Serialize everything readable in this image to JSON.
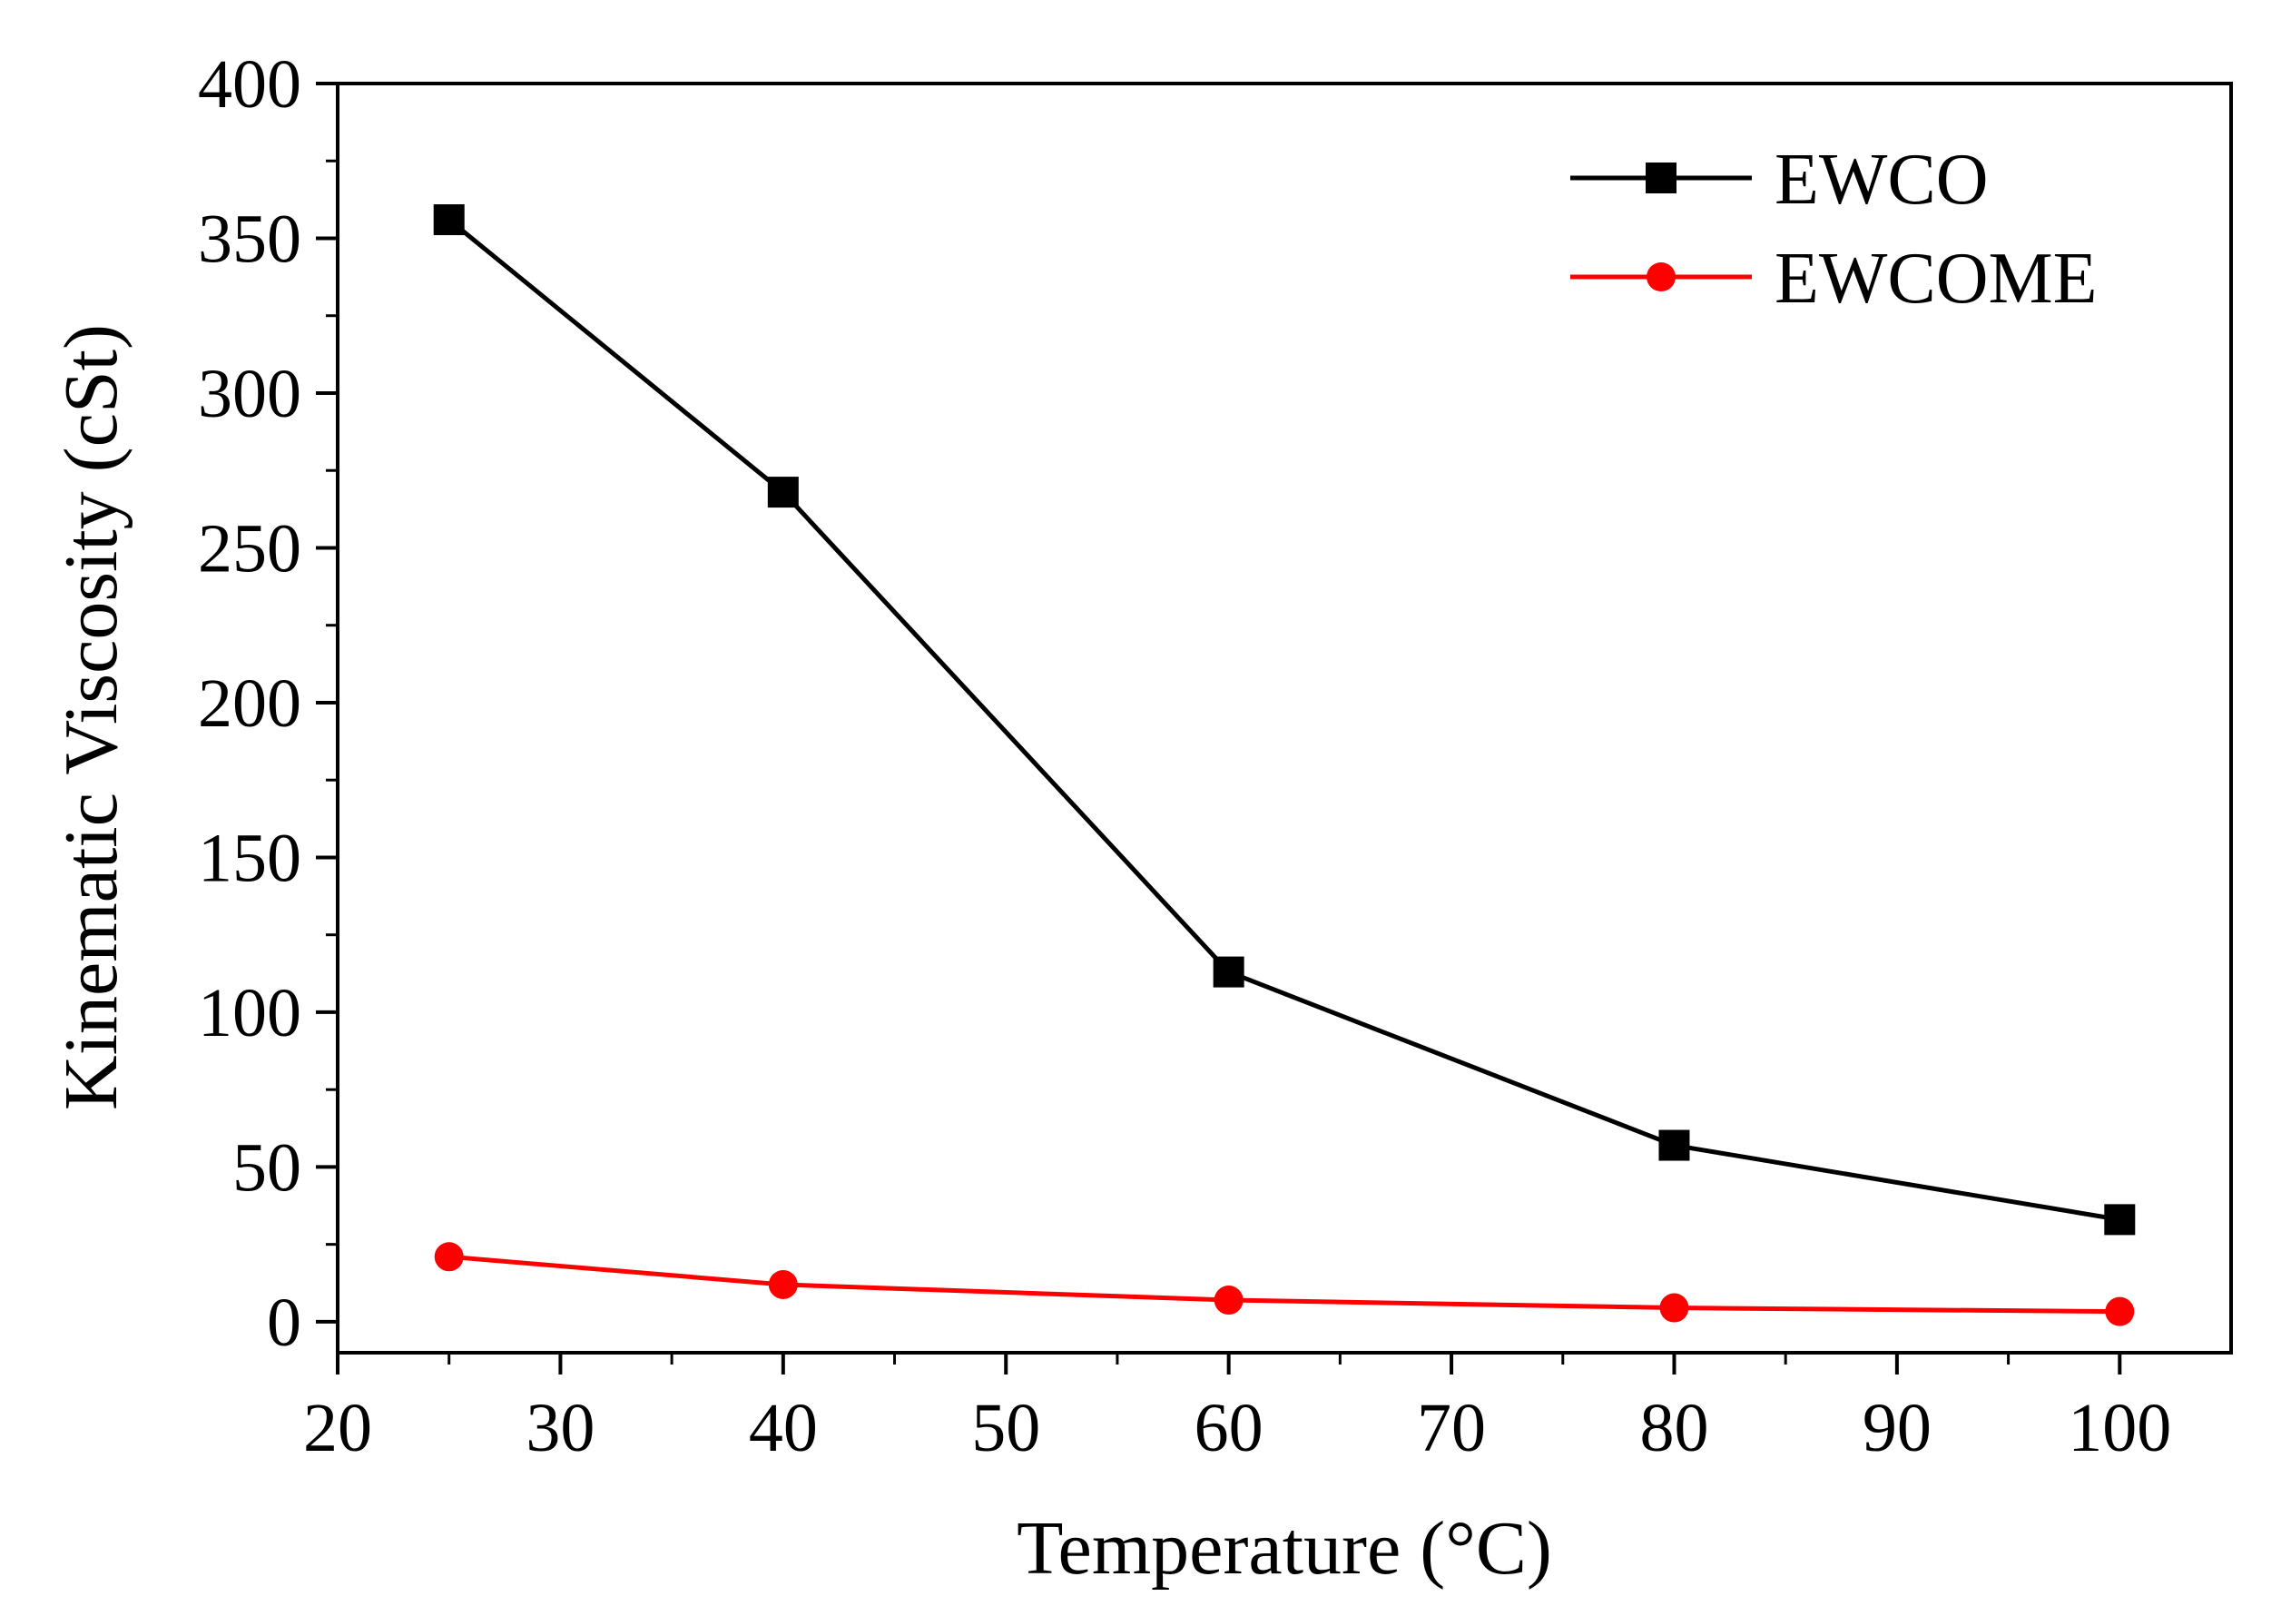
{
  "chart_data": {
    "type": "line",
    "title": "",
    "xlabel": "Temperature (°C)",
    "ylabel": "Kinematic Viscosity (cSt)",
    "xlim": [
      20,
      105
    ],
    "ylim": [
      -10,
      400
    ],
    "x_ticks": [
      20,
      30,
      40,
      50,
      60,
      70,
      80,
      90,
      100
    ],
    "x_tick_labels": [
      "20",
      "30",
      "40",
      "50",
      "60",
      "70",
      "80",
      "90",
      "100"
    ],
    "y_ticks": [
      0,
      50,
      100,
      150,
      200,
      250,
      300,
      350,
      400
    ],
    "y_tick_labels": [
      "0",
      "50",
      "100",
      "150",
      "200",
      "250",
      "300",
      "350",
      "400"
    ],
    "grid": false,
    "legend_position": "top-right",
    "x": [
      25,
      40,
      60,
      80,
      100
    ],
    "series": [
      {
        "name": "EWCO",
        "color": "#000000",
        "marker": "square",
        "values": [
          356,
          268,
          113,
          57,
          33
        ]
      },
      {
        "name": "EWCOME",
        "color": "#ff0000",
        "marker": "circle",
        "values": [
          21,
          12,
          7,
          4.5,
          3.3
        ]
      }
    ]
  }
}
